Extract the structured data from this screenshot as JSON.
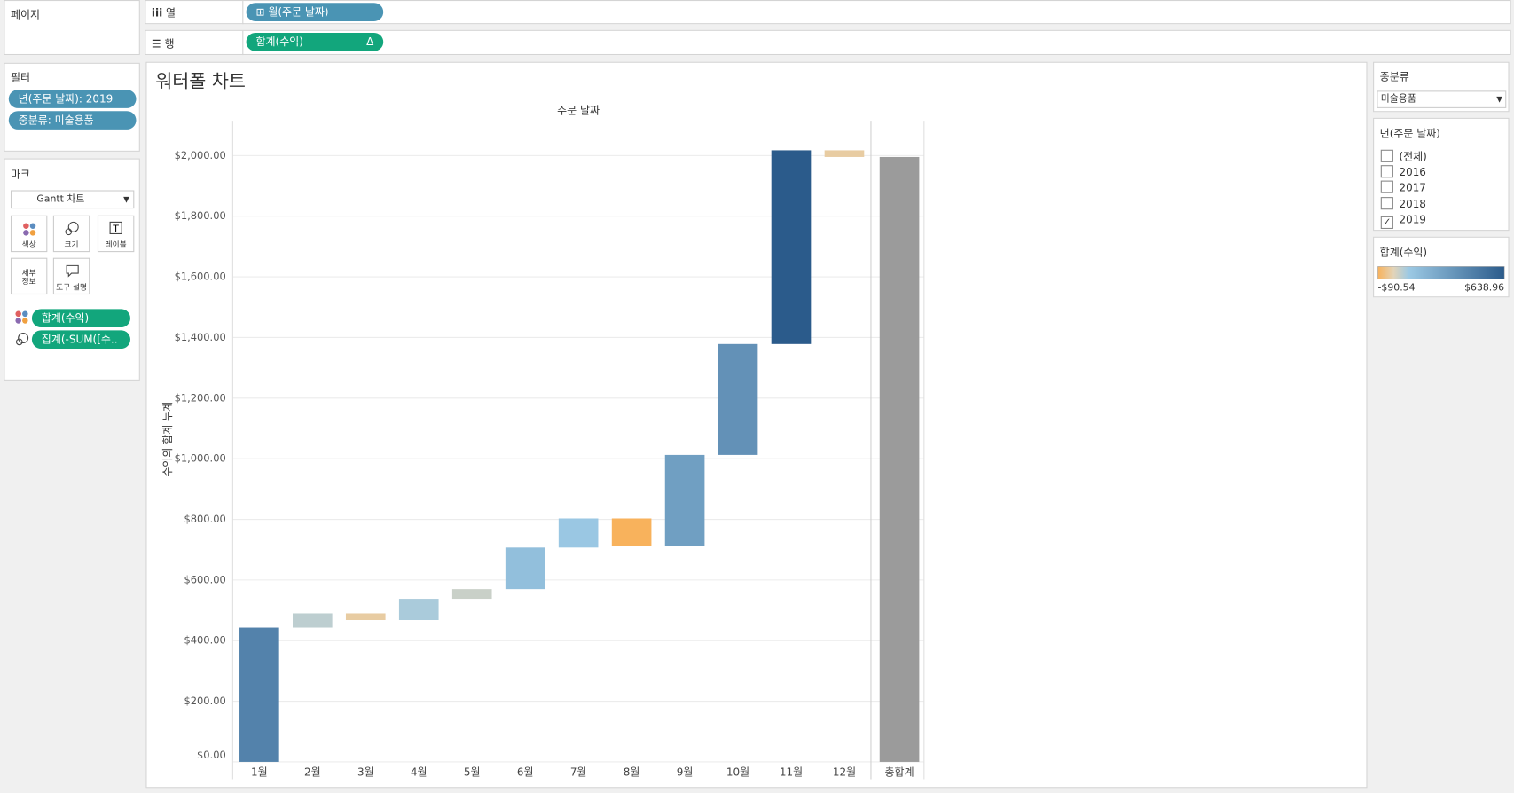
{
  "shelves": {
    "pages_label": "페이지",
    "columns_label": "열",
    "columns_pill": "월(주문 날짜)",
    "rows_label": "행",
    "rows_pill": "합계(수익)"
  },
  "filters": {
    "title": "필터",
    "items": [
      "년(주문 날짜): 2019",
      "중분류: 미술용품"
    ]
  },
  "marks": {
    "title": "마크",
    "type": "Gantt 차트",
    "buttons": [
      "색상",
      "크기",
      "레이블",
      "세부\n정보",
      "도구 설명"
    ],
    "pills": [
      "합계(수익)",
      "집계(-SUM([수.."
    ]
  },
  "chart_data": {
    "type": "waterfall",
    "title": "워터폴 차트",
    "x_title": "주문 날짜",
    "y_title": "수익의 합계 누계",
    "categories": [
      "1월",
      "2월",
      "3월",
      "4월",
      "5월",
      "6월",
      "7월",
      "8월",
      "9월",
      "10월",
      "11월",
      "12월"
    ],
    "values": [
      443,
      47,
      -22,
      70,
      32,
      137,
      96,
      -90.54,
      300,
      366,
      638.96,
      -22
    ],
    "total_label": "총합계",
    "total": 1995.42,
    "total_color": "#9b9b9b",
    "ylim": [
      0,
      2115
    ],
    "yticks": [
      {
        "value": 0,
        "label": "$0.00"
      },
      {
        "value": 200,
        "label": "$200.00"
      },
      {
        "value": 400,
        "label": "$400.00"
      },
      {
        "value": 600,
        "label": "$600.00"
      },
      {
        "value": 800,
        "label": "$800.00"
      },
      {
        "value": 1000,
        "label": "$1,000.00"
      },
      {
        "value": 1200,
        "label": "$1,200.00"
      },
      {
        "value": 1400,
        "label": "$1,400.00"
      },
      {
        "value": 1600,
        "label": "$1,600.00"
      },
      {
        "value": 1800,
        "label": "$1,800.00"
      },
      {
        "value": 2000,
        "label": "$2,000.00"
      }
    ],
    "grid": true,
    "color_range": [
      {
        "value": -90.54,
        "label": "-$90.54"
      },
      {
        "value": 638.96,
        "label": "$638.96"
      }
    ],
    "colors": {
      "negative": "#f8b25c",
      "zero": "#e3d4b8",
      "light": "#9cc9e4",
      "positive": "#2b5b8b"
    }
  },
  "right_panel": {
    "sub_category_title": "중분류",
    "sub_category_value": "미술용품",
    "year_title": "년(주문 날짜)",
    "year_options": [
      "(전체)",
      "2016",
      "2017",
      "2018",
      "2019"
    ],
    "year_checked": [
      false,
      false,
      false,
      false,
      true
    ],
    "legend_title": "합계(수익)"
  }
}
